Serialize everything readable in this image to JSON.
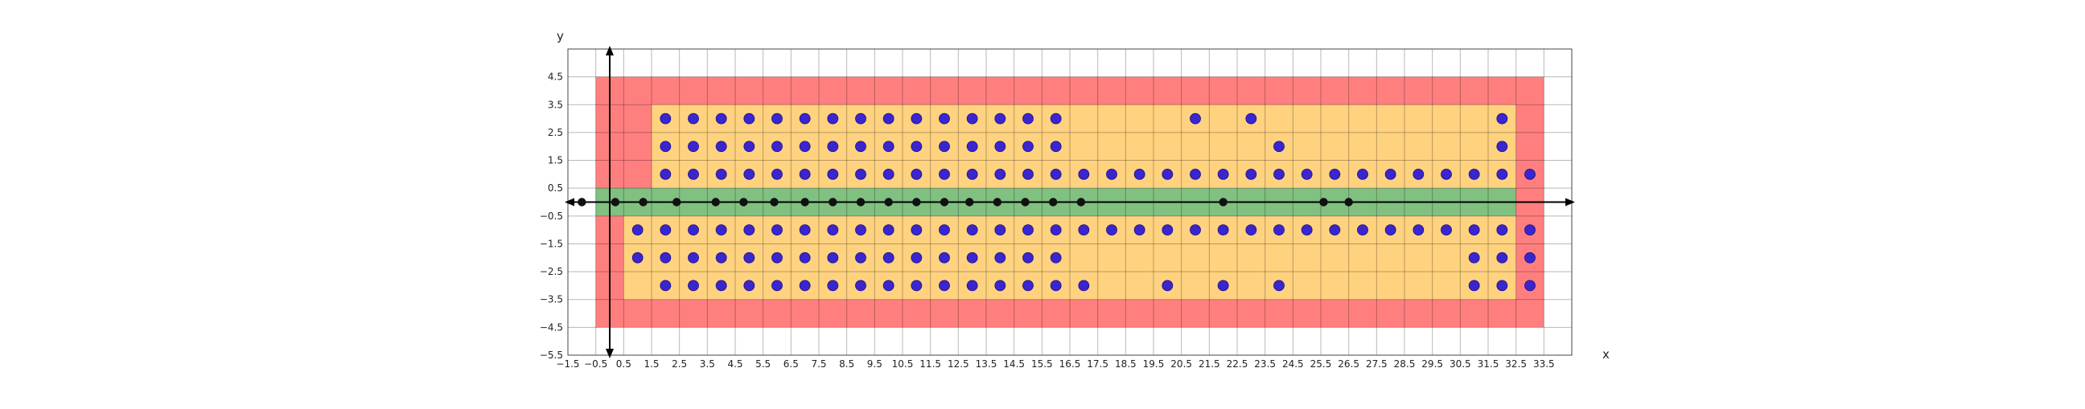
{
  "chart_data": {
    "type": "scatter",
    "title": "",
    "xlabel": "x",
    "ylabel": "y",
    "xlim": [
      -1.5,
      34.5
    ],
    "ylim": [
      -5.5,
      5.5
    ],
    "grid": true,
    "colors": {
      "red_region": "#ff7f7f",
      "orange_region": "#ffd27f",
      "green_band": "#80c080",
      "blue_points": "#3a25d0",
      "black_points": "#111111",
      "axes": "#000000"
    },
    "x_ticks": [
      -1.5,
      -0.5,
      0.5,
      1.5,
      2.5,
      3.5,
      4.5,
      5.5,
      6.5,
      7.5,
      8.5,
      9.5,
      10.5,
      11.5,
      12.5,
      13.5,
      14.5,
      15.5,
      16.5,
      17.5,
      18.5,
      19.5,
      20.5,
      21.5,
      22.5,
      23.5,
      24.5,
      25.5,
      26.5,
      27.5,
      28.5,
      29.5,
      30.5,
      31.5,
      32.5,
      33.5
    ],
    "x_tick_labels": [
      "−1.5",
      "−0.5",
      "0.5",
      "1.5",
      "2.5",
      "3.5",
      "4.5",
      "5.5",
      "6.5",
      "7.5",
      "8.5",
      "9.5",
      "10.5",
      "11.5",
      "12.5",
      "13.5",
      "14.5",
      "15.5",
      "16.5",
      "17.5",
      "18.5",
      "19.5",
      "20.5",
      "21.5",
      "22.5",
      "23.5",
      "24.5",
      "25.5",
      "26.5",
      "27.5",
      "28.5",
      "29.5",
      "30.5",
      "31.5",
      "32.5",
      "33.5"
    ],
    "y_ticks": [
      4.5,
      3.5,
      2.5,
      1.5,
      0.5,
      -0.5,
      -1.5,
      -2.5,
      -3.5,
      -4.5,
      -5.5
    ],
    "y_tick_labels": [
      "4.5",
      "3.5",
      "2.5",
      "1.5",
      "0.5",
      "−0.5",
      "−1.5",
      "−2.5",
      "−3.5",
      "−4.5",
      "−5.5"
    ],
    "regions": [
      {
        "name": "red",
        "color": "#ff7f7f",
        "x0": -0.5,
        "x1": 33.5,
        "y0": -4.5,
        "y1": 4.5
      },
      {
        "name": "orange-upper",
        "color": "#ffd27f",
        "x0": 1.5,
        "x1": 32.5,
        "y0": 0.5,
        "y1": 3.5
      },
      {
        "name": "orange-lower",
        "color": "#ffd27f",
        "x0": 0.5,
        "x1": 32.5,
        "y0": -3.5,
        "y1": -0.5
      },
      {
        "name": "green",
        "color": "#80c080",
        "x0": -0.5,
        "x1": 32.5,
        "y0": -0.5,
        "y1": 0.5
      }
    ],
    "blue_points": [
      [
        2,
        3
      ],
      [
        3,
        3
      ],
      [
        4,
        3
      ],
      [
        5,
        3
      ],
      [
        6,
        3
      ],
      [
        7,
        3
      ],
      [
        8,
        3
      ],
      [
        9,
        3
      ],
      [
        10,
        3
      ],
      [
        11,
        3
      ],
      [
        12,
        3
      ],
      [
        13,
        3
      ],
      [
        14,
        3
      ],
      [
        15,
        3
      ],
      [
        16,
        3
      ],
      [
        21,
        3
      ],
      [
        23,
        3
      ],
      [
        32,
        3
      ],
      [
        2,
        2
      ],
      [
        3,
        2
      ],
      [
        4,
        2
      ],
      [
        5,
        2
      ],
      [
        6,
        2
      ],
      [
        7,
        2
      ],
      [
        8,
        2
      ],
      [
        9,
        2
      ],
      [
        10,
        2
      ],
      [
        11,
        2
      ],
      [
        12,
        2
      ],
      [
        13,
        2
      ],
      [
        14,
        2
      ],
      [
        15,
        2
      ],
      [
        16,
        2
      ],
      [
        24,
        2
      ],
      [
        32,
        2
      ],
      [
        2,
        1
      ],
      [
        3,
        1
      ],
      [
        4,
        1
      ],
      [
        5,
        1
      ],
      [
        6,
        1
      ],
      [
        7,
        1
      ],
      [
        8,
        1
      ],
      [
        9,
        1
      ],
      [
        10,
        1
      ],
      [
        11,
        1
      ],
      [
        12,
        1
      ],
      [
        13,
        1
      ],
      [
        14,
        1
      ],
      [
        15,
        1
      ],
      [
        16,
        1
      ],
      [
        17,
        1
      ],
      [
        18,
        1
      ],
      [
        19,
        1
      ],
      [
        20,
        1
      ],
      [
        21,
        1
      ],
      [
        22,
        1
      ],
      [
        23,
        1
      ],
      [
        24,
        1
      ],
      [
        25,
        1
      ],
      [
        26,
        1
      ],
      [
        27,
        1
      ],
      [
        28,
        1
      ],
      [
        29,
        1
      ],
      [
        30,
        1
      ],
      [
        31,
        1
      ],
      [
        32,
        1
      ],
      [
        33,
        1
      ],
      [
        1,
        -1
      ],
      [
        2,
        -1
      ],
      [
        3,
        -1
      ],
      [
        4,
        -1
      ],
      [
        5,
        -1
      ],
      [
        6,
        -1
      ],
      [
        7,
        -1
      ],
      [
        8,
        -1
      ],
      [
        9,
        -1
      ],
      [
        10,
        -1
      ],
      [
        11,
        -1
      ],
      [
        12,
        -1
      ],
      [
        13,
        -1
      ],
      [
        14,
        -1
      ],
      [
        15,
        -1
      ],
      [
        16,
        -1
      ],
      [
        17,
        -1
      ],
      [
        18,
        -1
      ],
      [
        19,
        -1
      ],
      [
        20,
        -1
      ],
      [
        21,
        -1
      ],
      [
        22,
        -1
      ],
      [
        23,
        -1
      ],
      [
        24,
        -1
      ],
      [
        25,
        -1
      ],
      [
        26,
        -1
      ],
      [
        27,
        -1
      ],
      [
        28,
        -1
      ],
      [
        29,
        -1
      ],
      [
        30,
        -1
      ],
      [
        31,
        -1
      ],
      [
        32,
        -1
      ],
      [
        33,
        -1
      ],
      [
        1,
        -2
      ],
      [
        2,
        -2
      ],
      [
        3,
        -2
      ],
      [
        4,
        -2
      ],
      [
        5,
        -2
      ],
      [
        6,
        -2
      ],
      [
        7,
        -2
      ],
      [
        8,
        -2
      ],
      [
        9,
        -2
      ],
      [
        10,
        -2
      ],
      [
        11,
        -2
      ],
      [
        12,
        -2
      ],
      [
        13,
        -2
      ],
      [
        14,
        -2
      ],
      [
        15,
        -2
      ],
      [
        16,
        -2
      ],
      [
        31,
        -2
      ],
      [
        32,
        -2
      ],
      [
        33,
        -2
      ],
      [
        2,
        -3
      ],
      [
        3,
        -3
      ],
      [
        4,
        -3
      ],
      [
        5,
        -3
      ],
      [
        6,
        -3
      ],
      [
        7,
        -3
      ],
      [
        8,
        -3
      ],
      [
        9,
        -3
      ],
      [
        10,
        -3
      ],
      [
        11,
        -3
      ],
      [
        12,
        -3
      ],
      [
        13,
        -3
      ],
      [
        14,
        -3
      ],
      [
        15,
        -3
      ],
      [
        16,
        -3
      ],
      [
        17,
        -3
      ],
      [
        20,
        -3
      ],
      [
        22,
        -3
      ],
      [
        24,
        -3
      ],
      [
        31,
        -3
      ],
      [
        32,
        -3
      ],
      [
        33,
        -3
      ]
    ],
    "black_points": [
      [
        -1,
        0
      ],
      [
        0.2,
        0
      ],
      [
        1.2,
        0
      ],
      [
        2.4,
        0
      ],
      [
        3.8,
        0
      ],
      [
        4.8,
        0
      ],
      [
        5.9,
        0
      ],
      [
        7,
        0
      ],
      [
        8,
        0
      ],
      [
        9,
        0
      ],
      [
        10,
        0
      ],
      [
        11,
        0
      ],
      [
        12,
        0
      ],
      [
        12.9,
        0
      ],
      [
        13.9,
        0
      ],
      [
        14.9,
        0
      ],
      [
        15.9,
        0
      ],
      [
        16.9,
        0
      ],
      [
        22,
        0
      ],
      [
        25.6,
        0
      ],
      [
        26.5,
        0
      ]
    ]
  }
}
